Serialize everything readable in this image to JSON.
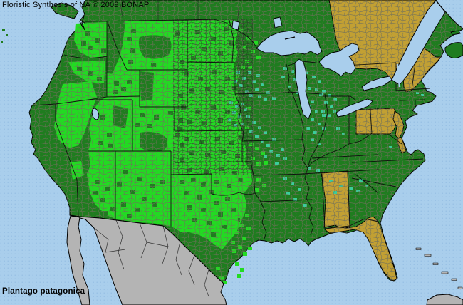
{
  "header": {
    "title": "Floristic Synthesis of NA © 2009 BONAP"
  },
  "footer": {
    "species_label": "Plantago patagonica"
  },
  "palette": {
    "water": "#A9CEEC",
    "water_dot": "#92BCE2",
    "dark_green": "#1F7C1F",
    "bright_green": "#22DB22",
    "teal": "#3BCD9B",
    "tan": "#C2A033",
    "gray_land": "#B4B4B4",
    "county_line": "#6F6F5B",
    "border": "#000000",
    "text": "#000000"
  }
}
